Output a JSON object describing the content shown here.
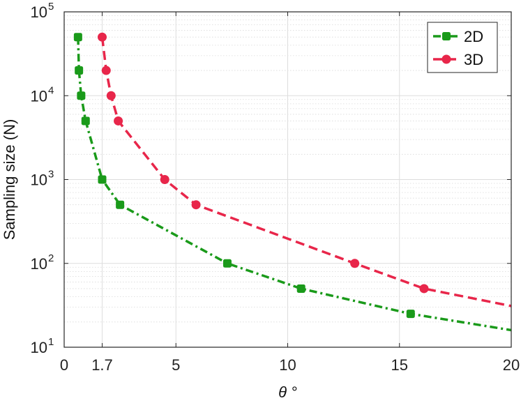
{
  "chart_data": {
    "type": "line",
    "title": "",
    "xlabel": "θ °",
    "ylabel": "Sampling size (N)",
    "xlim": [
      0,
      20
    ],
    "ylim": [
      10,
      100000
    ],
    "yscale": "log",
    "grid": true,
    "legend_position": "top-right",
    "x_ticks": [
      0,
      1.7,
      5,
      10,
      15,
      20
    ],
    "x_tick_labels": [
      "0",
      "1.7",
      "5",
      "10",
      "15",
      "20"
    ],
    "y_ticks": [
      10,
      100,
      1000,
      10000,
      100000
    ],
    "y_tick_labels": [
      {
        "base": "10",
        "exp": "1"
      },
      {
        "base": "10",
        "exp": "2"
      },
      {
        "base": "10",
        "exp": "3"
      },
      {
        "base": "10",
        "exp": "4"
      },
      {
        "base": "10",
        "exp": "5"
      }
    ],
    "series": [
      {
        "name": "2D",
        "color": "#1a9a1a",
        "line_style": "dashdot",
        "marker": "square",
        "x": [
          0.62,
          0.66,
          0.76,
          0.96,
          1.7,
          2.5,
          7.3,
          10.6,
          15.5,
          20.0
        ],
        "y": [
          50000,
          20000,
          10000,
          5000,
          1000,
          500,
          100,
          50,
          25,
          16
        ],
        "marker_mask": [
          true,
          true,
          true,
          true,
          true,
          true,
          true,
          true,
          true,
          false
        ]
      },
      {
        "name": "3D",
        "color": "#e8264a",
        "line_style": "dashed",
        "marker": "circle",
        "x": [
          1.7,
          1.88,
          2.1,
          2.42,
          4.5,
          5.9,
          13.0,
          16.1,
          20.0
        ],
        "y": [
          50000,
          20000,
          10000,
          5000,
          1000,
          500,
          100,
          50,
          31
        ],
        "marker_mask": [
          true,
          true,
          true,
          true,
          true,
          true,
          true,
          true,
          false
        ]
      }
    ]
  }
}
